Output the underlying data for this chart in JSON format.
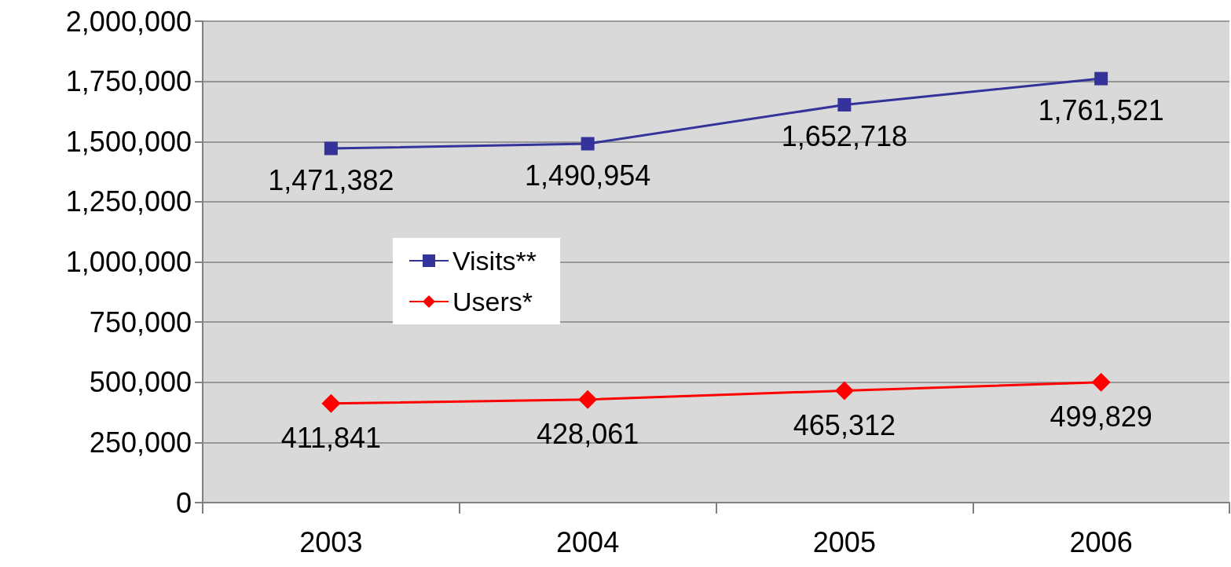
{
  "chart_data": {
    "type": "line",
    "categories": [
      "2003",
      "2004",
      "2005",
      "2006"
    ],
    "series": [
      {
        "name": "Visits**",
        "color": "#333399",
        "marker": "square",
        "values": [
          1471382,
          1490954,
          1652718,
          1761521
        ],
        "value_labels": [
          "1,471,382",
          "1,490,954",
          "1,652,718",
          "1,761,521"
        ]
      },
      {
        "name": "Users*",
        "color": "#ff0000",
        "marker": "diamond",
        "values": [
          411841,
          428061,
          465312,
          499829
        ],
        "value_labels": [
          "411,841",
          "428,061",
          "465,312",
          "499,829"
        ]
      }
    ],
    "ylim": [
      0,
      2000000
    ],
    "yticks": [
      0,
      {
        "value": 250000,
        "label": "250,000"
      },
      {
        "value": 500000,
        "label": "500,000"
      },
      {
        "value": 750000,
        "label": "750,000"
      },
      {
        "value": 1000000,
        "label": "1,000,000"
      },
      {
        "value": 1250000,
        "label": "1,250,000"
      },
      {
        "value": 1500000,
        "label": "1,500,000"
      },
      {
        "value": 1750000,
        "label": "1,750,000"
      },
      {
        "value": 2000000,
        "label": "2,000,000"
      }
    ],
    "grid": "y",
    "legend": "left"
  }
}
